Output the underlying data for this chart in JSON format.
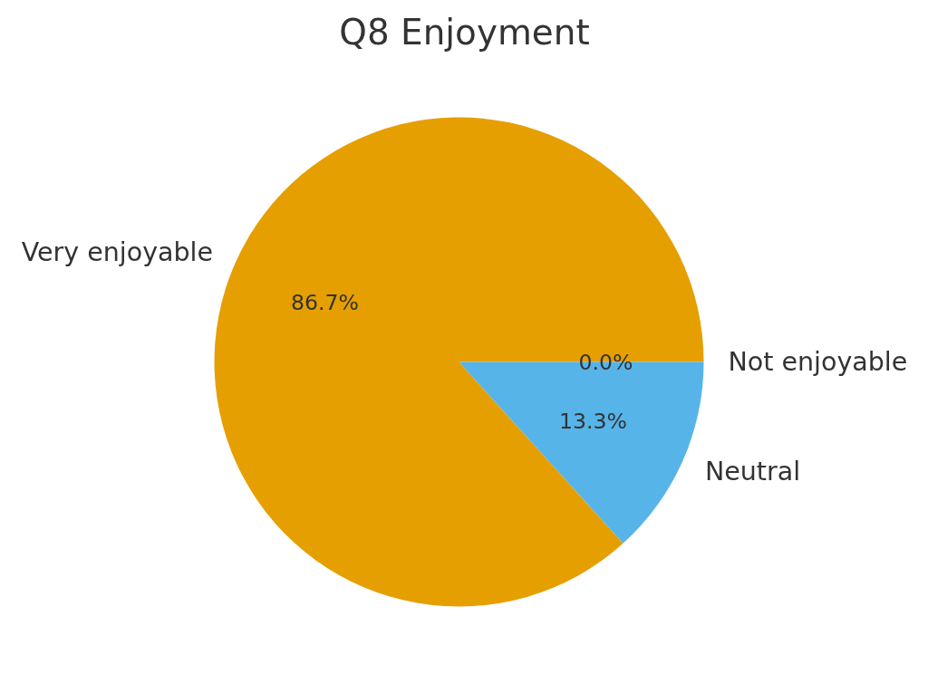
{
  "chart_data": {
    "type": "pie",
    "title": "Q8 Enjoyment",
    "categories": [
      "Very enjoyable",
      "Neutral",
      "Not enjoyable"
    ],
    "values": [
      86.7,
      13.3,
      0.0
    ],
    "colors": [
      "#e69f00",
      "#56b4e9",
      "#009e73"
    ],
    "value_labels": [
      "86.7%",
      "13.3%",
      "0.0%"
    ]
  }
}
